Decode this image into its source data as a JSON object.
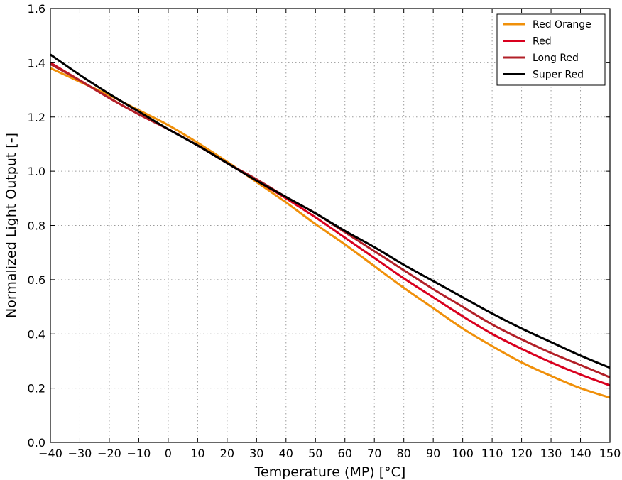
{
  "chart_data": {
    "type": "line",
    "title": "",
    "xlabel": "Temperature (MP) [°C]",
    "ylabel": "Normalized Light Output [-]",
    "xlim": [
      -40,
      150
    ],
    "ylim": [
      0.0,
      1.6
    ],
    "xticks": [
      -40,
      -30,
      -20,
      -10,
      0,
      10,
      20,
      30,
      40,
      50,
      60,
      70,
      80,
      90,
      100,
      110,
      120,
      130,
      140,
      150
    ],
    "yticks": [
      0.0,
      0.2,
      0.4,
      0.6,
      0.8,
      1.0,
      1.2,
      1.4,
      1.6
    ],
    "xtick_labels": [
      "−40",
      "−30",
      "−20",
      "−10",
      "0",
      "10",
      "20",
      "30",
      "40",
      "50",
      "60",
      "70",
      "80",
      "90",
      "100",
      "110",
      "120",
      "130",
      "140",
      "150"
    ],
    "ytick_labels": [
      "0.0",
      "0.2",
      "0.4",
      "0.6",
      "0.8",
      "1.0",
      "1.2",
      "1.4",
      "1.6"
    ],
    "grid": true,
    "legend_position": "top-right",
    "x": [
      -40,
      -30,
      -20,
      -10,
      0,
      10,
      20,
      30,
      40,
      50,
      60,
      70,
      80,
      90,
      100,
      110,
      120,
      130,
      140,
      150
    ],
    "series": [
      {
        "name": "Red Orange",
        "color": "#f0900a",
        "values": [
          1.38,
          1.33,
          1.28,
          1.225,
          1.17,
          1.105,
          1.035,
          0.96,
          0.885,
          0.805,
          0.73,
          0.65,
          0.57,
          0.495,
          0.42,
          0.355,
          0.295,
          0.245,
          0.2,
          0.165
        ]
      },
      {
        "name": "Red",
        "color": "#d9001e",
        "values": [
          1.4,
          1.335,
          1.27,
          1.21,
          1.155,
          1.095,
          1.03,
          0.965,
          0.9,
          0.83,
          0.755,
          0.68,
          0.605,
          0.535,
          0.465,
          0.4,
          0.345,
          0.295,
          0.25,
          0.21
        ]
      },
      {
        "name": "Long Red",
        "color": "#b22028",
        "values": [
          1.395,
          1.335,
          1.27,
          1.21,
          1.155,
          1.095,
          1.03,
          0.97,
          0.905,
          0.845,
          0.775,
          0.705,
          0.635,
          0.565,
          0.5,
          0.435,
          0.38,
          0.33,
          0.285,
          0.24
        ]
      },
      {
        "name": "Super Red",
        "color": "#000000",
        "values": [
          1.43,
          1.355,
          1.285,
          1.22,
          1.155,
          1.095,
          1.03,
          0.965,
          0.905,
          0.845,
          0.78,
          0.72,
          0.655,
          0.595,
          0.535,
          0.475,
          0.42,
          0.37,
          0.32,
          0.275
        ]
      }
    ]
  }
}
